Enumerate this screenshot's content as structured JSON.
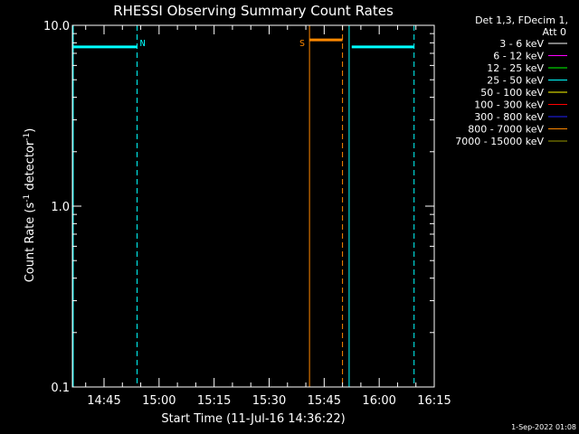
{
  "chart_data": {
    "type": "line",
    "title": "RHESSI Observing Summary Count Rates",
    "xlabel": "Start Time (11-Jul-16 14:36:22)",
    "ylabel_main": "Count Rate (s",
    "ylabel_sup1": "-1",
    "ylabel_mid": " detector",
    "ylabel_sup2": "-1",
    "ylabel_end": ")",
    "yscale": "log",
    "ylim": [
      0.1,
      10.0
    ],
    "xlim_minutes": [
      36.37,
      135.0
    ],
    "x_ticks": [
      {
        "label": "14:45",
        "minute": 45
      },
      {
        "label": "15:00",
        "minute": 60
      },
      {
        "label": "15:15",
        "minute": 75
      },
      {
        "label": "15:30",
        "minute": 90
      },
      {
        "label": "15:45",
        "minute": 105
      },
      {
        "label": "16:00",
        "minute": 120
      },
      {
        "label": "16:15",
        "minute": 135
      }
    ],
    "y_ticks": [
      {
        "label": "0.1",
        "value": 0.1
      },
      {
        "label": "1.0",
        "value": 1.0
      },
      {
        "label": "10.0",
        "value": 10.0
      }
    ],
    "series": [
      {
        "name": "25 - 50 keV",
        "color": "#00ffff",
        "segments": [
          [
            [
              36.4,
              7.6
            ],
            [
              54.0,
              7.6
            ]
          ],
          [
            [
              112.5,
              7.6
            ],
            [
              129.5,
              7.6
            ]
          ]
        ]
      },
      {
        "name": "800 - 7000 keV",
        "color": "#ff8800",
        "segments": [
          [
            [
              101.0,
              8.3
            ],
            [
              110.0,
              8.3
            ]
          ]
        ]
      }
    ],
    "vertical_lines": [
      {
        "minute": 36.6,
        "color": "#00ffff",
        "style": "solid"
      },
      {
        "minute": 54.0,
        "color": "#00ffff",
        "style": "dashed"
      },
      {
        "minute": 101.0,
        "color": "#ff8800",
        "style": "solid"
      },
      {
        "minute": 110.0,
        "color": "#ff8800",
        "style": "dashed"
      },
      {
        "minute": 111.8,
        "color": "#00ffff",
        "style": "solid"
      },
      {
        "minute": 129.5,
        "color": "#00ffff",
        "style": "dashed"
      }
    ],
    "annotations": [
      {
        "text": "N",
        "minute": 55.5,
        "color": "#00ffff"
      },
      {
        "text": "S",
        "minute": 99.0,
        "color": "#ff8800"
      }
    ],
    "legend": {
      "header_line1": "Det 1,3, FDecim 1,",
      "header_line2": "Att 0",
      "placement": "right",
      "entries": [
        {
          "label": "3 - 6 keV",
          "color": "#ffffff"
        },
        {
          "label": "6 - 12 keV",
          "color": "#ff00ff"
        },
        {
          "label": "12 - 25 keV",
          "color": "#00ff00"
        },
        {
          "label": "25 - 50 keV",
          "color": "#00ffff"
        },
        {
          "label": "50 - 100 keV",
          "color": "#ffff00"
        },
        {
          "label": "100 - 300 keV",
          "color": "#ff0000"
        },
        {
          "label": "300 - 800 keV",
          "color": "#2222ff"
        },
        {
          "label": "800 - 7000 keV",
          "color": "#ff8800"
        },
        {
          "label": "7000 - 15000 keV",
          "color": "#999900"
        }
      ]
    }
  },
  "footer": {
    "date": "1-Sep-2022 01:08"
  }
}
